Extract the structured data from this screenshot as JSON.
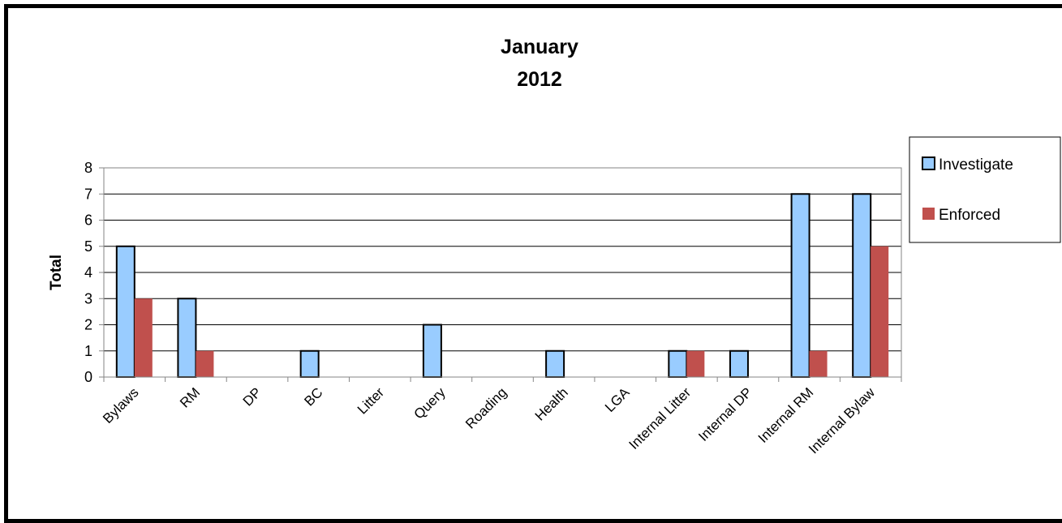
{
  "chart_data": {
    "type": "bar",
    "title_lines": [
      "January",
      "2012"
    ],
    "xlabel": "",
    "ylabel": "Total",
    "ylim": [
      0,
      8
    ],
    "yticks": [
      0,
      1,
      2,
      3,
      4,
      5,
      6,
      7,
      8
    ],
    "grid": true,
    "legend_position": "right",
    "categories": [
      "Bylaws",
      "RM",
      "DP",
      "BC",
      "Litter",
      "Query",
      "Roading",
      "Health",
      "LGA",
      "Internal Litter",
      "Internal DP",
      "Internal RM",
      "Internal Bylaw"
    ],
    "series": [
      {
        "name": "Investigate",
        "color": "#99CCFF",
        "values": [
          5,
          3,
          0,
          1,
          0,
          2,
          0,
          1,
          0,
          1,
          1,
          7,
          7
        ]
      },
      {
        "name": "Enforced",
        "color": "#C0504D",
        "values": [
          3,
          1,
          0,
          0,
          0,
          0,
          0,
          0,
          0,
          1,
          0,
          1,
          5
        ]
      }
    ]
  }
}
